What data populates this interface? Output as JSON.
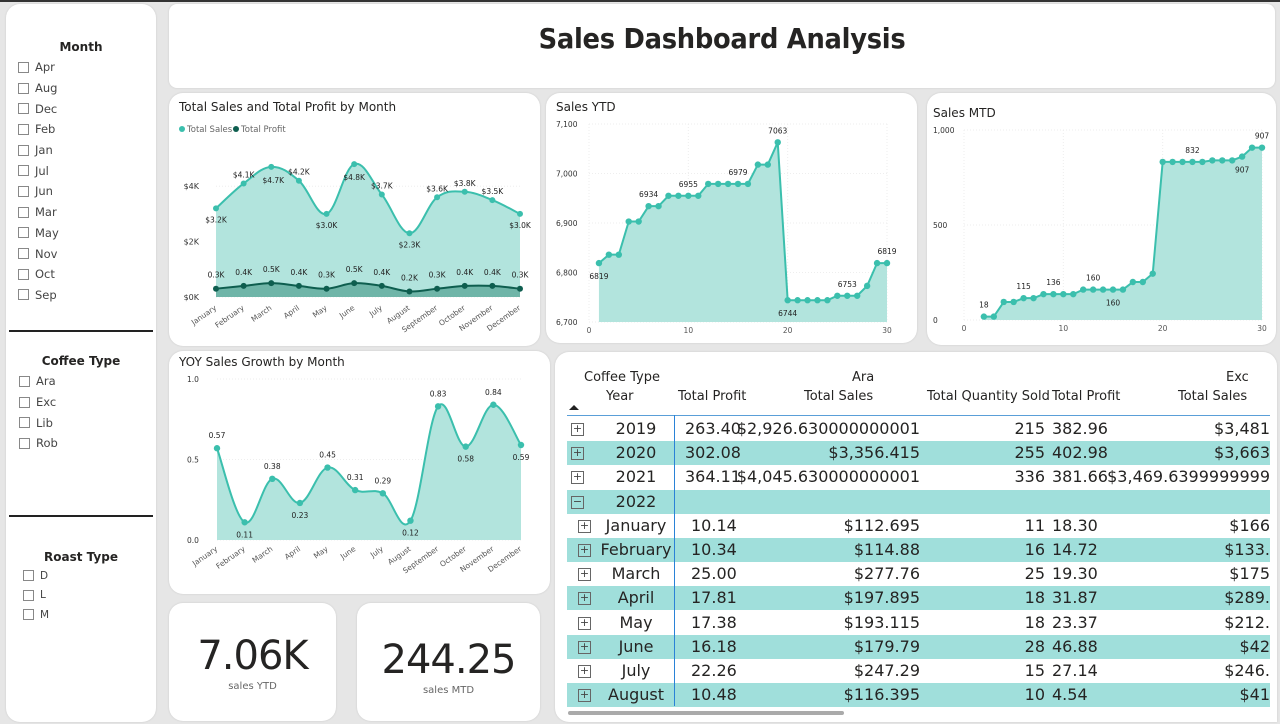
{
  "header": {
    "title": "Sales Dashboard Analysis"
  },
  "slicers": {
    "month": {
      "title": "Month",
      "items": [
        "Apr",
        "Aug",
        "Dec",
        "Feb",
        "Jan",
        "Jul",
        "Jun",
        "Mar",
        "May",
        "Nov",
        "Oct",
        "Sep"
      ]
    },
    "coffee_type": {
      "title": "Coffee Type",
      "items": [
        "Ara",
        "Exc",
        "Lib",
        "Rob"
      ]
    },
    "roast_type": {
      "title": "Roast Type",
      "items": [
        "D",
        "L",
        "M"
      ]
    }
  },
  "kpis": {
    "sales_ytd": {
      "value": "7.06K",
      "label": "sales YTD"
    },
    "sales_mtd": {
      "value": "244.25",
      "label": "sales MTD"
    }
  },
  "chart_data": [
    {
      "id": "sales_profit",
      "type": "area",
      "title": "Total Sales and Total Profit by Month",
      "legend": [
        "Total Sales",
        "Total Profit"
      ],
      "legend_position": "top-left",
      "categories": [
        "January",
        "February",
        "March",
        "April",
        "May",
        "June",
        "July",
        "August",
        "September",
        "October",
        "November",
        "December"
      ],
      "series": [
        {
          "name": "Total Sales",
          "color": "#3bbfad",
          "values": [
            3200,
            4100,
            4700,
            4200,
            3000,
            4800,
            3700,
            2300,
            3600,
            3800,
            3500,
            3000
          ],
          "labels": [
            "$3.2K",
            "$4.1K",
            "$4.7K",
            "$4.2K",
            "$3.0K",
            "$4.8K",
            "$3.7K",
            "$2.3K",
            "$3.6K",
            "$3.8K",
            "$3.5K",
            "$3.0K"
          ]
        },
        {
          "name": "Total Profit",
          "color": "#0e5e4f",
          "values": [
            300,
            400,
            500,
            400,
            300,
            500,
            400,
            200,
            300,
            400,
            400,
            300
          ],
          "labels": [
            "0.3K",
            "0.4K",
            "0.5K",
            "0.4K",
            "0.3K",
            "0.5K",
            "0.4K",
            "0.2K",
            "0.3K",
            "0.4K",
            "0.4K",
            "0.3K"
          ]
        }
      ],
      "yticks": [
        "$0K",
        "$2K",
        "$4K"
      ],
      "ylim": [
        0,
        5200
      ]
    },
    {
      "id": "sales_ytd",
      "type": "area",
      "title": "Sales YTD",
      "x": [
        1,
        2,
        3,
        4,
        5,
        6,
        7,
        8,
        9,
        10,
        11,
        12,
        13,
        14,
        15,
        16,
        17,
        18,
        19,
        20,
        21,
        22,
        23,
        24,
        25,
        26,
        27,
        28,
        29,
        30
      ],
      "values": [
        6819,
        6836,
        6836,
        6903,
        6903,
        6934,
        6934,
        6955,
        6955,
        6955,
        6955,
        6979,
        6979,
        6979,
        6979,
        6979,
        7018,
        7018,
        7063,
        6744,
        6744,
        6744,
        6744,
        6744,
        6753,
        6753,
        6753,
        6773,
        6819,
        6819
      ],
      "data_labels": [
        {
          "x": 1,
          "label": "6819",
          "pos": "below"
        },
        {
          "x": 6,
          "label": "6934",
          "pos": "above"
        },
        {
          "x": 10,
          "label": "6955",
          "pos": "above"
        },
        {
          "x": 15,
          "label": "6979",
          "pos": "above"
        },
        {
          "x": 19,
          "label": "7063",
          "pos": "above"
        },
        {
          "x": 20,
          "label": "6744",
          "pos": "below"
        },
        {
          "x": 26,
          "label": "6753",
          "pos": "above"
        },
        {
          "x": 30,
          "label": "6819",
          "pos": "above"
        }
      ],
      "xticks": [
        "0",
        "10",
        "20",
        "30"
      ],
      "yticks": [
        "6,700",
        "6,800",
        "6,900",
        "7,000",
        "7,100"
      ],
      "xlim": [
        0,
        30
      ],
      "ylim": [
        6700,
        7100
      ]
    },
    {
      "id": "sales_mtd",
      "type": "area",
      "title": "Sales MTD",
      "x": [
        2,
        3,
        4,
        5,
        6,
        7,
        8,
        9,
        10,
        11,
        12,
        13,
        14,
        15,
        16,
        17,
        18,
        19,
        20,
        21,
        22,
        23,
        24,
        25,
        26,
        27,
        28,
        29,
        30
      ],
      "values": [
        18,
        18,
        95,
        95,
        115,
        115,
        136,
        136,
        136,
        136,
        160,
        160,
        160,
        160,
        160,
        200,
        200,
        244,
        832,
        832,
        832,
        832,
        832,
        840,
        840,
        840,
        860,
        907,
        907
      ],
      "data_labels": [
        {
          "x": 2,
          "label": "18",
          "pos": "above"
        },
        {
          "x": 6,
          "label": "115",
          "pos": "above"
        },
        {
          "x": 9,
          "label": "136",
          "pos": "above"
        },
        {
          "x": 13,
          "label": "160",
          "pos": "above"
        },
        {
          "x": 15,
          "label": "160",
          "pos": "below"
        },
        {
          "x": 23,
          "label": "832",
          "pos": "above"
        },
        {
          "x": 28,
          "label": "907",
          "pos": "below"
        },
        {
          "x": 30,
          "label": "907",
          "pos": "above"
        }
      ],
      "xticks": [
        "0",
        "10",
        "20",
        "30"
      ],
      "yticks": [
        "0",
        "500",
        "1,000"
      ],
      "xlim": [
        0,
        30
      ],
      "ylim": [
        0,
        1000
      ]
    },
    {
      "id": "yoy_growth",
      "type": "area",
      "title": "YOY Sales Growth by Month",
      "categories": [
        "January",
        "February",
        "March",
        "April",
        "May",
        "June",
        "July",
        "August",
        "September",
        "October",
        "November",
        "December"
      ],
      "values": [
        0.57,
        0.11,
        0.38,
        0.23,
        0.45,
        0.31,
        0.29,
        0.12,
        0.83,
        0.58,
        0.84,
        0.59
      ],
      "labels": [
        "0.57",
        "0.11",
        "0.38",
        "0.23",
        "0.45",
        "0.31",
        "0.29",
        "0.12",
        "0.83",
        "0.58",
        "0.84",
        "0.59"
      ],
      "label_pos": [
        "above",
        "below",
        "above",
        "below",
        "above",
        "above",
        "above",
        "below",
        "above",
        "below",
        "above",
        "below"
      ],
      "yticks": [
        "0.0",
        "0.5",
        "1.0"
      ],
      "ylim": [
        0,
        1.0
      ]
    }
  ],
  "matrix": {
    "header_row1": {
      "row_label": "Coffee Type",
      "group1": "Ara",
      "group2": "Exc"
    },
    "header_row2": {
      "row_label": "Year",
      "cols": [
        "Total Profit",
        "Total Sales",
        "Total Quantity Sold",
        "Total Profit",
        "Total Sales"
      ]
    },
    "sort_icon": "sort-ascending",
    "rows": [
      {
        "expand": "+",
        "label": "2019",
        "cells": [
          "263.40",
          "$2,926.630000000001",
          "215",
          "382.96",
          "$3,481"
        ],
        "alt": false,
        "indent": 0
      },
      {
        "expand": "+",
        "label": "2020",
        "cells": [
          "302.08",
          "$3,356.415",
          "255",
          "402.98",
          "$3,663"
        ],
        "alt": true,
        "indent": 0
      },
      {
        "expand": "+",
        "label": "2021",
        "cells": [
          "364.11",
          "$4,045.630000000001",
          "336",
          "381.66",
          "$3,469.6399999999"
        ],
        "alt": false,
        "indent": 0
      },
      {
        "expand": "−",
        "label": "2022",
        "cells": [
          "",
          "",
          "",
          "",
          ""
        ],
        "alt": true,
        "indent": 0
      },
      {
        "expand": "+",
        "label": "January",
        "cells": [
          "10.14",
          "$112.695",
          "11",
          "18.30",
          "$166"
        ],
        "alt": false,
        "indent": 1
      },
      {
        "expand": "+",
        "label": "February",
        "cells": [
          "10.34",
          "$114.88",
          "16",
          "14.72",
          "$133."
        ],
        "alt": true,
        "indent": 1
      },
      {
        "expand": "+",
        "label": "March",
        "cells": [
          "25.00",
          "$277.76",
          "25",
          "19.30",
          "$175"
        ],
        "alt": false,
        "indent": 1
      },
      {
        "expand": "+",
        "label": "April",
        "cells": [
          "17.81",
          "$197.895",
          "18",
          "31.87",
          "$289."
        ],
        "alt": true,
        "indent": 1
      },
      {
        "expand": "+",
        "label": "May",
        "cells": [
          "17.38",
          "$193.115",
          "18",
          "23.37",
          "$212."
        ],
        "alt": false,
        "indent": 1
      },
      {
        "expand": "+",
        "label": "June",
        "cells": [
          "16.18",
          "$179.79",
          "28",
          "46.88",
          "$42"
        ],
        "alt": true,
        "indent": 1
      },
      {
        "expand": "+",
        "label": "July",
        "cells": [
          "22.26",
          "$247.29",
          "15",
          "27.14",
          "$246."
        ],
        "alt": false,
        "indent": 1
      },
      {
        "expand": "+",
        "label": "August",
        "cells": [
          "10.48",
          "$116.395",
          "10",
          "4.54",
          "$41"
        ],
        "alt": true,
        "indent": 1
      }
    ]
  }
}
